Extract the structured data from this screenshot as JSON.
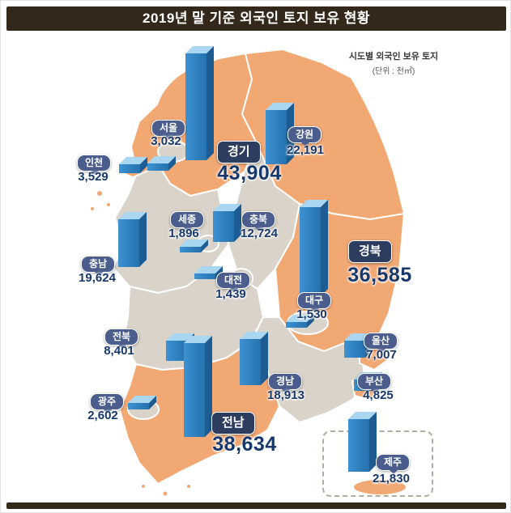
{
  "header": {
    "title": "2019년 말 기준 외국인 토지 보유 현황"
  },
  "legend": {
    "line1": "시도별 외국인 보유 토지",
    "line2": "(단위 : 천㎡)"
  },
  "chart_data": {
    "type": "bar",
    "title": "2019년 말 기준 외국인 토지 보유 현황",
    "subtitle": "시도별 외국인 보유 토지",
    "unit": "천㎡",
    "regions": [
      {
        "id": "gyeonggi",
        "label": "경기",
        "value": 43904,
        "value_label": "43,904",
        "emphasis": true
      },
      {
        "id": "gangwon",
        "label": "강원",
        "value": 22191,
        "value_label": "22,191",
        "emphasis": false
      },
      {
        "id": "seoul",
        "label": "서울",
        "value": 3032,
        "value_label": "3,032",
        "emphasis": false
      },
      {
        "id": "incheon",
        "label": "인천",
        "value": 3529,
        "value_label": "3,529",
        "emphasis": false
      },
      {
        "id": "sejong",
        "label": "세종",
        "value": 1896,
        "value_label": "1,896",
        "emphasis": false
      },
      {
        "id": "chungbuk",
        "label": "충북",
        "value": 12724,
        "value_label": "12,724",
        "emphasis": false
      },
      {
        "id": "chungnam",
        "label": "충남",
        "value": 19624,
        "value_label": "19,624",
        "emphasis": false
      },
      {
        "id": "daejeon",
        "label": "대전",
        "value": 1439,
        "value_label": "1,439",
        "emphasis": false
      },
      {
        "id": "gyeongbuk",
        "label": "경북",
        "value": 36585,
        "value_label": "36,585",
        "emphasis": true
      },
      {
        "id": "daegu",
        "label": "대구",
        "value": 1530,
        "value_label": "1,530",
        "emphasis": false
      },
      {
        "id": "jeonbuk",
        "label": "전북",
        "value": 8401,
        "value_label": "8,401",
        "emphasis": false
      },
      {
        "id": "ulsan",
        "label": "울산",
        "value": 7007,
        "value_label": "7,007",
        "emphasis": false
      },
      {
        "id": "gyeongnam",
        "label": "경남",
        "value": 18913,
        "value_label": "18,913",
        "emphasis": false
      },
      {
        "id": "busan",
        "label": "부산",
        "value": 4825,
        "value_label": "4,825",
        "emphasis": false
      },
      {
        "id": "gwangju",
        "label": "광주",
        "value": 2602,
        "value_label": "2,602",
        "emphasis": false
      },
      {
        "id": "jeonnam",
        "label": "전남",
        "value": 38634,
        "value_label": "38,634",
        "emphasis": true
      },
      {
        "id": "jeju",
        "label": "제주",
        "value": 21830,
        "value_label": "21,830",
        "emphasis": false
      }
    ]
  },
  "colors": {
    "header_bg": "#34281b",
    "region_orange": "#f2a873",
    "region_gray": "#d9d3c9",
    "bar_blue": "#2f7fbe",
    "value_text": "#17386b",
    "badge_blue": "#4a5d8c",
    "badge_navy": "#2d3d60"
  }
}
